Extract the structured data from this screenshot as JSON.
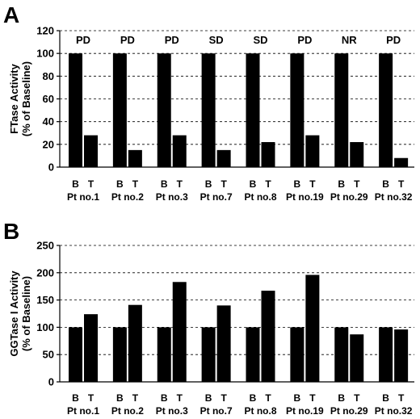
{
  "chart_data": [
    {
      "type": "bar",
      "panel_label": "A",
      "ylabel": [
        "FTase Activity",
        "(% of Baseline)"
      ],
      "ylim": [
        0,
        120
      ],
      "yticks": [
        0,
        20,
        40,
        60,
        80,
        100,
        120
      ],
      "grid": true,
      "categories": [
        "Pt no.1",
        "Pt no.2",
        "Pt no.3",
        "Pt no.7",
        "Pt no.8",
        "Pt no.19",
        "Pt no.29",
        "Pt no.32"
      ],
      "bar_labels": [
        "B",
        "T"
      ],
      "responses": [
        "PD",
        "PD",
        "PD",
        "SD",
        "SD",
        "PD",
        "NR",
        "PD"
      ],
      "series": [
        {
          "values": [
            100,
            100,
            100,
            100,
            100,
            100,
            100,
            100
          ]
        },
        {
          "values": [
            28,
            15,
            28,
            15,
            22,
            28,
            22,
            8
          ]
        }
      ]
    },
    {
      "type": "bar",
      "panel_label": "B",
      "ylabel": [
        "GGTase I Activity",
        "(% of Baseline)"
      ],
      "ylim": [
        0,
        250
      ],
      "yticks": [
        0,
        50,
        100,
        150,
        200,
        250
      ],
      "grid": true,
      "categories": [
        "Pt no.1",
        "Pt no.2",
        "Pt no.3",
        "Pt no.7",
        "Pt no.8",
        "Pt no.19",
        "Pt no.29",
        "Pt no.32"
      ],
      "bar_labels": [
        "B",
        "T"
      ],
      "series": [
        {
          "values": [
            100,
            100,
            100,
            100,
            100,
            100,
            100,
            100
          ]
        },
        {
          "values": [
            124,
            141,
            183,
            140,
            167,
            196,
            87,
            96
          ]
        }
      ]
    }
  ]
}
